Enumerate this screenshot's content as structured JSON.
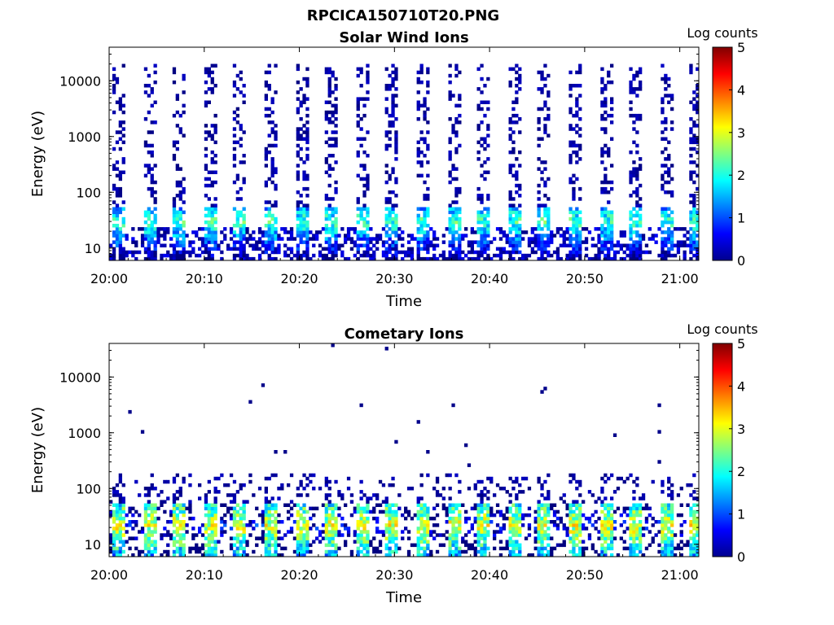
{
  "figure_title": "RPCICA150710T20.PNG",
  "chart_data": [
    {
      "type": "heatmap",
      "title": "Solar Wind Ions",
      "xlabel": "Time",
      "ylabel": "Energy (eV)",
      "x_range": [
        "20:00",
        "21:02"
      ],
      "x_ticks": [
        "20:00",
        "20:10",
        "20:20",
        "20:30",
        "20:40",
        "20:50",
        "21:00"
      ],
      "y_scale": "log",
      "y_range": [
        6,
        40000
      ],
      "y_ticks": [
        "10",
        "100",
        "1000",
        "10000"
      ],
      "colorbar": {
        "label": "Log counts",
        "min": 0,
        "max": 5,
        "ticks": [
          "0",
          "1",
          "2",
          "3",
          "4",
          "5"
        ],
        "colormap": "jet"
      },
      "sweep_period_min": 3.2,
      "peak_energy_eV": 30,
      "peak_log_counts": 2.7,
      "high_energy_extent_eV": 20000,
      "grid": false
    },
    {
      "type": "heatmap",
      "title": "Cometary Ions",
      "xlabel": "Time",
      "ylabel": "Energy (eV)",
      "x_range": [
        "20:00",
        "21:02"
      ],
      "x_ticks": [
        "20:00",
        "20:10",
        "20:20",
        "20:30",
        "20:40",
        "20:50",
        "21:00"
      ],
      "y_scale": "log",
      "y_range": [
        6,
        40000
      ],
      "y_ticks": [
        "10",
        "100",
        "1000",
        "10000"
      ],
      "colorbar": {
        "label": "Log counts",
        "min": 0,
        "max": 5,
        "ticks": [
          "0",
          "1",
          "2",
          "3",
          "4",
          "5"
        ],
        "colormap": "jet"
      },
      "sweep_period_min": 3.2,
      "peak_energy_eV": 22,
      "peak_log_counts": 3.6,
      "high_energy_extent_eV": 200,
      "grid": false
    }
  ]
}
